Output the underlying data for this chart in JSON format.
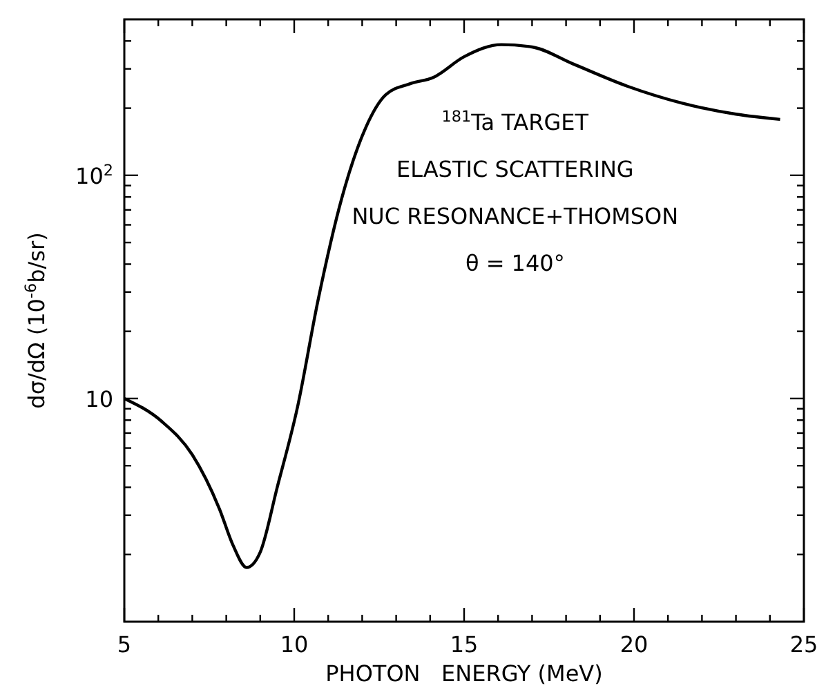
{
  "chart_data": {
    "type": "line",
    "xlabel": "PHOTON   ENERGY (MeV)",
    "ylabel": "dσ/dΩ (10$^{-6}$b/sr)",
    "log": "y",
    "xlim": [
      5,
      25
    ],
    "ylim": [
      1,
      500
    ],
    "xticks": [
      5,
      {
        "value": 6,
        "label": null
      },
      {
        "value": 7,
        "label": null
      },
      {
        "value": 8,
        "label": null
      },
      {
        "value": 9,
        "label": null
      },
      10,
      {
        "value": 11,
        "label": null
      },
      {
        "value": 12,
        "label": null
      },
      {
        "value": 13,
        "label": null
      },
      {
        "value": 14,
        "label": null
      },
      15,
      {
        "value": 16,
        "label": null
      },
      {
        "value": 17,
        "label": null
      },
      {
        "value": 18,
        "label": null
      },
      {
        "value": 19,
        "label": null
      },
      20,
      {
        "value": 21,
        "label": null
      },
      {
        "value": 22,
        "label": null
      },
      {
        "value": 23,
        "label": null
      },
      {
        "value": 24,
        "label": null
      },
      25
    ],
    "yticks": [
      {
        "value": 2,
        "label": null
      },
      {
        "value": 3,
        "label": null
      },
      {
        "value": 4,
        "label": null
      },
      {
        "value": 5,
        "label": null
      },
      {
        "value": 6,
        "label": null
      },
      {
        "value": 7,
        "label": null
      },
      {
        "value": 8,
        "label": null
      },
      {
        "value": 9,
        "label": null
      },
      10,
      {
        "value": 20,
        "label": null
      },
      {
        "value": 30,
        "label": null
      },
      {
        "value": 40,
        "label": null
      },
      {
        "value": 50,
        "label": null
      },
      {
        "value": 60,
        "label": null
      },
      {
        "value": 70,
        "label": null
      },
      {
        "value": 80,
        "label": null
      },
      {
        "value": 90,
        "label": null
      },
      {
        "value": 100,
        "label": "10$^{2}$"
      },
      {
        "value": 200,
        "label": null
      },
      {
        "value": 300,
        "label": null
      },
      {
        "value": 400,
        "label": null
      }
    ],
    "annotations": [
      "$^{181}$Ta TARGET",
      "ELASTIC SCATTERING",
      "NUC RESONANCE+THOMSON",
      "θ = 140°"
    ],
    "series": [
      {
        "color": "#000000",
        "x": [
          5,
          6.1,
          7,
          7.8,
          8.2,
          8.6,
          9,
          9.5,
          10.1,
          10.7,
          11.4,
          12.1,
          12.7,
          13.4,
          14.1,
          15,
          16.1,
          17,
          18.2,
          19.8,
          21.4,
          23,
          24.3
        ],
        "values": [
          10,
          7.9,
          5.6,
          3.2,
          2.2,
          1.75,
          2.05,
          4,
          9.2,
          27.5,
          79,
          163,
          230,
          257,
          275,
          340,
          385,
          376,
          316,
          251,
          211,
          188,
          178
        ]
      }
    ]
  }
}
